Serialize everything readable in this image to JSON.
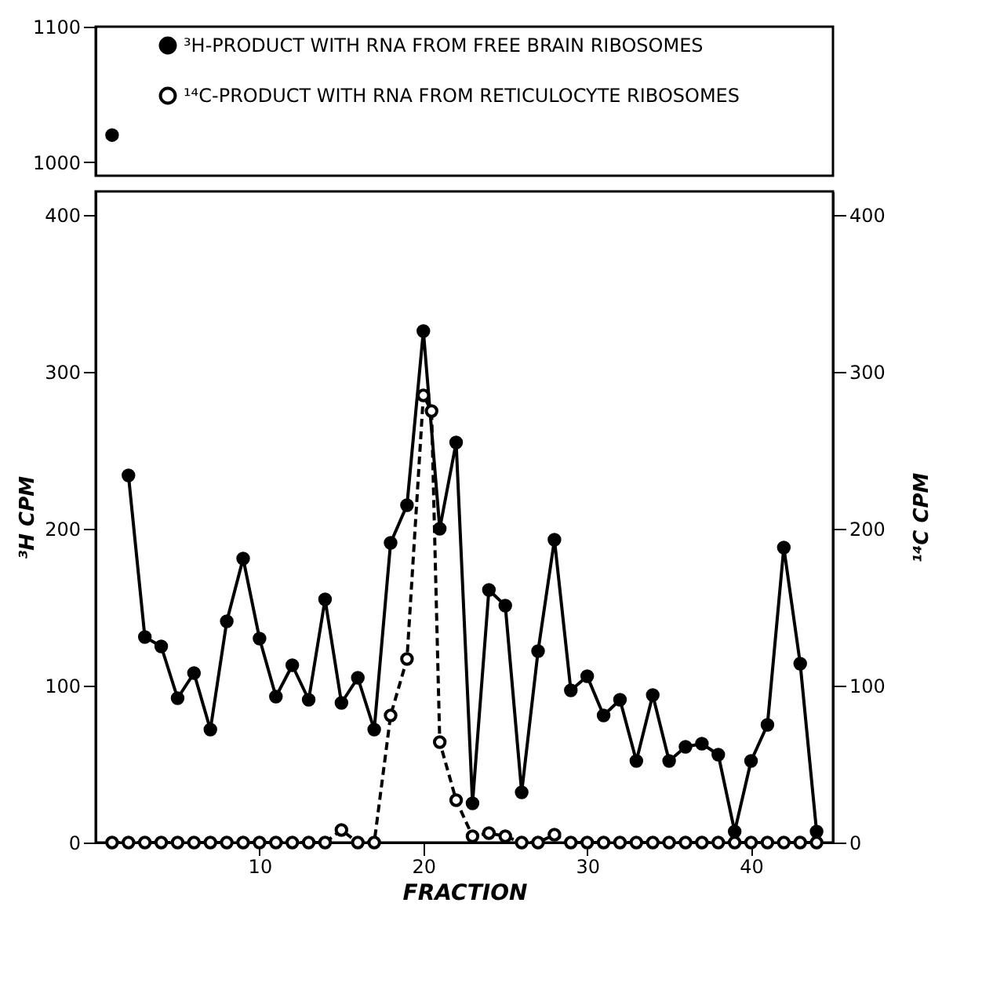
{
  "chart_data": [
    {
      "type": "line",
      "x": [
        1
      ],
      "xlim": [
        0,
        45
      ],
      "ylim": [
        990,
        1100
      ],
      "yticks": [
        1000,
        1100
      ],
      "grid": false,
      "marker": "circle",
      "series": [
        {
          "color": "#000000",
          "values": [
            1020
          ],
          "line_style": "solid"
        }
      ]
    },
    {
      "type": "line",
      "xlim": [
        0,
        45
      ],
      "xticks": [
        10,
        20,
        30,
        40
      ],
      "ylim": [
        0,
        415
      ],
      "yticks": [
        0,
        100,
        200,
        300,
        400
      ],
      "y2lim": [
        0,
        415
      ],
      "y2ticks": [
        0,
        100,
        200,
        300,
        400
      ],
      "xlabel": "FRACTION",
      "ylabel": "³H  CPM",
      "y2label": "¹⁴C  CPM",
      "grid": false,
      "marker": "circle",
      "legend": "top",
      "series": [
        {
          "name": "³H-PRODUCT WITH RNA FROM FREE BRAIN RIBOSOMES",
          "color": "#000000",
          "line_style": "solid",
          "x": [
            2,
            3,
            4,
            5,
            6,
            7,
            8,
            9,
            10,
            11,
            12,
            13,
            14,
            15,
            16,
            17,
            18,
            19,
            20,
            21,
            22,
            23,
            24,
            25,
            26,
            27,
            28,
            29,
            30,
            31,
            32,
            33,
            34,
            35,
            36,
            37,
            38,
            39,
            40,
            41,
            42,
            43,
            44
          ],
          "values": [
            234,
            131,
            125,
            92,
            108,
            72,
            141,
            181,
            130,
            93,
            113,
            91,
            155,
            89,
            105,
            72,
            191,
            215,
            326,
            200,
            255,
            25,
            161,
            151,
            32,
            122,
            193,
            97,
            106,
            81,
            91,
            52,
            94,
            52,
            61,
            63,
            56,
            7,
            52,
            75,
            188,
            114,
            7
          ]
        },
        {
          "name": "¹⁴C-PRODUCT WITH RNA FROM RETICULOCYTE RIBOSOMES",
          "color": "#000000",
          "line_style": "dashed",
          "axis": "y2",
          "x": [
            1,
            2,
            3,
            4,
            5,
            6,
            7,
            8,
            9,
            10,
            11,
            12,
            13,
            14,
            15,
            16,
            17,
            18,
            19,
            20,
            20.5,
            21,
            22,
            23,
            24,
            25,
            26,
            27,
            28,
            29,
            30,
            31,
            32,
            33,
            34,
            35,
            36,
            37,
            38,
            39,
            40,
            41,
            42,
            43,
            44
          ],
          "values": [
            0,
            0,
            0,
            0,
            0,
            0,
            0,
            0,
            0,
            0,
            0,
            0,
            0,
            0,
            8,
            0,
            0,
            81,
            117,
            285,
            275,
            64,
            27,
            4,
            6,
            4,
            0,
            0,
            5,
            0,
            0,
            0,
            0,
            0,
            0,
            0,
            0,
            0,
            0,
            0,
            0,
            0,
            0,
            0,
            0
          ]
        }
      ]
    }
  ]
}
